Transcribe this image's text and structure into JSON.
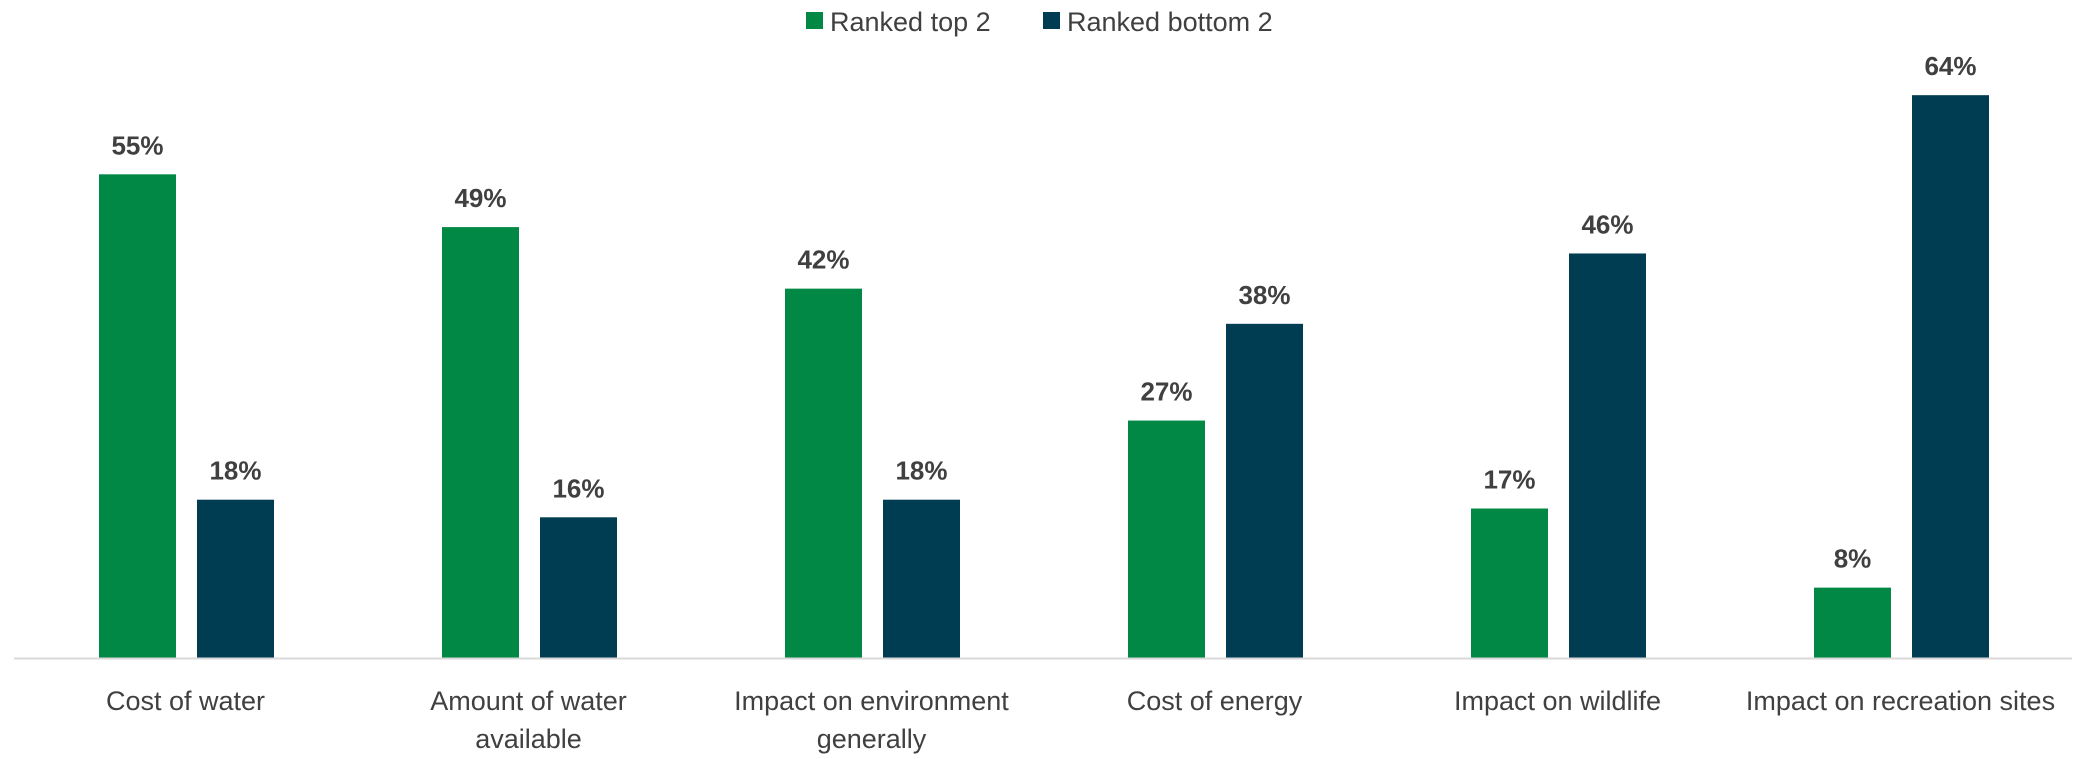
{
  "chart_data": {
    "type": "bar",
    "title": "",
    "xlabel": "",
    "ylabel": "",
    "categories": [
      [
        "Cost of water"
      ],
      [
        "Amount of water",
        "available"
      ],
      [
        "Impact on environment",
        "generally"
      ],
      [
        "Cost of energy"
      ],
      [
        "Impact on wildlife"
      ],
      [
        "Impact on recreation sites"
      ]
    ],
    "series": [
      {
        "name": "Ranked top 2",
        "color": "#008844",
        "values": [
          55,
          49,
          42,
          27,
          17,
          8
        ],
        "labels": [
          "55%",
          "49%",
          "42%",
          "27%",
          "17%",
          "8%"
        ]
      },
      {
        "name": "Ranked bottom 2",
        "color": "#003d52",
        "values": [
          18,
          16,
          18,
          38,
          46,
          64
        ],
        "labels": [
          "18%",
          "16%",
          "18%",
          "38%",
          "46%",
          "64%"
        ]
      }
    ],
    "ylim": [
      0,
      68
    ],
    "grid": false,
    "legend": "top-center",
    "axis_color": "#d9d9d9",
    "text_color": "#404040"
  }
}
